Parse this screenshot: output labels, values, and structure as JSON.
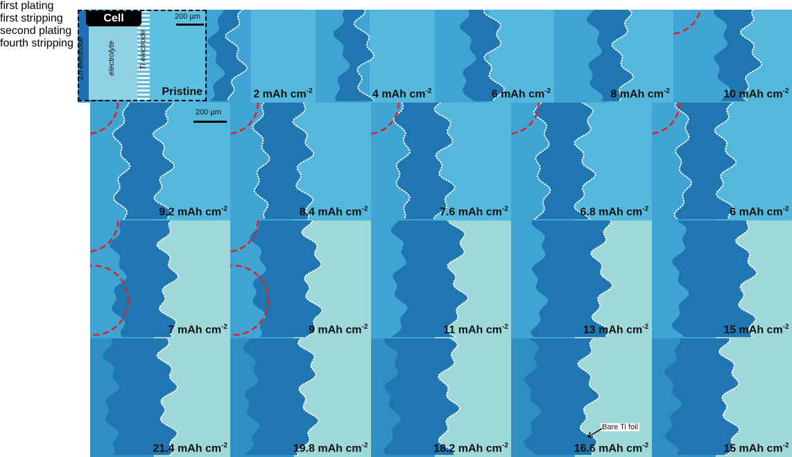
{
  "rows": [
    {
      "label": "first plating",
      "panels": [
        {
          "caption": {
            "text": "Pristine"
          }
        },
        {
          "caption": {
            "text": "2 mAh cm",
            "sup": "-2"
          }
        },
        {
          "caption": {
            "text": "4 mAh cm",
            "sup": "-2"
          }
        },
        {
          "caption": {
            "text": "6 mAh cm",
            "sup": "-2"
          }
        },
        {
          "caption": {
            "text": "8 mAh cm",
            "sup": "-2"
          }
        },
        {
          "caption": {
            "text": "10 mAh cm",
            "sup": "-2"
          }
        }
      ]
    },
    {
      "label": "first stripping",
      "panels": [
        {
          "caption": {
            "text": "9.2 mAh cm",
            "sup": "-2"
          }
        },
        {
          "caption": {
            "text": "8.4 mAh cm",
            "sup": "-2"
          }
        },
        {
          "caption": {
            "text": "7.6 mAh cm",
            "sup": "-2"
          }
        },
        {
          "caption": {
            "text": "6.8 mAh cm",
            "sup": "-2"
          }
        },
        {
          "caption": {
            "text": "6 mAh cm",
            "sup": "-2"
          }
        }
      ]
    },
    {
      "label": "second plating",
      "panels": [
        {
          "caption": {
            "text": "7 mAh cm",
            "sup": "-2"
          }
        },
        {
          "caption": {
            "text": "9 mAh cm",
            "sup": "-2"
          }
        },
        {
          "caption": {
            "text": "11 mAh cm",
            "sup": "-2"
          }
        },
        {
          "caption": {
            "text": "13 mAh cm",
            "sup": "-2"
          }
        },
        {
          "caption": {
            "text": "15 mAh cm",
            "sup": "-2"
          }
        }
      ]
    },
    {
      "label": "fourth stripping",
      "panels": [
        {
          "caption": {
            "text": "21.4 mAh cm",
            "sup": "-2"
          }
        },
        {
          "caption": {
            "text": "19.8 mAh cm",
            "sup": "-2"
          }
        },
        {
          "caption": {
            "text": "18.2 mAh cm",
            "sup": "-2"
          }
        },
        {
          "caption": {
            "text": "16.6 mAh cm",
            "sup": "-2"
          }
        },
        {
          "caption": {
            "text": "15 mAh cm",
            "sup": "-2"
          }
        }
      ]
    }
  ],
  "inset": {
    "title": "Cell",
    "scale_bar": "200 µm",
    "zn": "Zn electrode",
    "electrolyte": "electrolyte",
    "ti": "Ti electrode"
  },
  "scale_bar_2": "200 µm",
  "annotation": "Bare Ti foil"
}
